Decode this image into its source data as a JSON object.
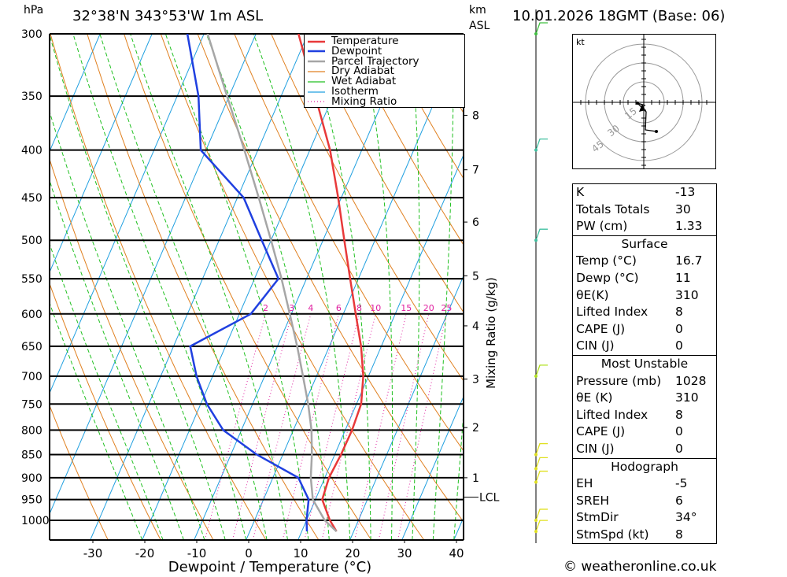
{
  "header": {
    "hpa_unit": "hPa",
    "location": "32°38'N 343°53'W 1m ASL",
    "km_unit": "km",
    "asl_unit": "ASL",
    "datetime": "10.01.2026 18GMT (Base: 06)"
  },
  "chart_data": {
    "type": "skew-t log-p",
    "xlabel": "Dewpoint / Temperature (°C)",
    "ylabel_left": "hPa",
    "ylabel_right": "Mixing Ratio (g/kg)",
    "pressure_levels": [
      300,
      350,
      400,
      450,
      500,
      550,
      600,
      650,
      700,
      750,
      800,
      850,
      900,
      950,
      1000
    ],
    "temperature_ticks": [
      -30,
      -20,
      -10,
      0,
      10,
      20,
      30,
      40
    ],
    "km_ticks": [
      {
        "label": "8",
        "p": 367
      },
      {
        "label": "7",
        "p": 420
      },
      {
        "label": "6",
        "p": 478
      },
      {
        "label": "5",
        "p": 546
      },
      {
        "label": "4",
        "p": 618
      },
      {
        "label": "3",
        "p": 705
      },
      {
        "label": "2",
        "p": 795
      },
      {
        "label": "1",
        "p": 900
      }
    ],
    "lcl": {
      "label": "LCL",
      "p": 950
    },
    "mixing_ratio_labels": [
      "2",
      "3",
      "4",
      "6",
      "8",
      "10",
      "15",
      "20",
      "25"
    ],
    "mixing_ratio_values": [
      2,
      3,
      4,
      6,
      8,
      10,
      15,
      20,
      25
    ],
    "legend": [
      "Temperature",
      "Dewpoint",
      "Parcel Trajectory",
      "Dry Adiabat",
      "Wet Adiabat",
      "Isotherm",
      "Mixing Ratio"
    ],
    "series": [
      {
        "name": "Temperature",
        "color": "#e8393a",
        "points": [
          [
            1028,
            16.7
          ],
          [
            1000,
            14.5
          ],
          [
            950,
            11.3
          ],
          [
            900,
            10.8
          ],
          [
            850,
            11.2
          ],
          [
            800,
            11.3
          ],
          [
            750,
            10.9
          ],
          [
            700,
            9.0
          ],
          [
            650,
            6.1
          ],
          [
            600,
            2.4
          ],
          [
            550,
            -1.6
          ],
          [
            500,
            -5.9
          ],
          [
            450,
            -10.6
          ],
          [
            400,
            -16.1
          ],
          [
            350,
            -23.4
          ],
          [
            300,
            -31.8
          ]
        ]
      },
      {
        "name": "Dewpoint",
        "color": "#2040e0",
        "points": [
          [
            1028,
            11
          ],
          [
            1000,
            10.0
          ],
          [
            950,
            8.7
          ],
          [
            900,
            4.9
          ],
          [
            850,
            -5.0
          ],
          [
            800,
            -13.5
          ],
          [
            750,
            -18.8
          ],
          [
            700,
            -23.1
          ],
          [
            650,
            -26.8
          ],
          [
            600,
            -17.8
          ],
          [
            550,
            -15.4
          ],
          [
            500,
            -21.8
          ],
          [
            450,
            -28.8
          ],
          [
            400,
            -41.0
          ],
          [
            350,
            -45.9
          ],
          [
            300,
            -53.2
          ]
        ]
      },
      {
        "name": "Parcel Trajectory",
        "color": "#a6a6a6",
        "points": [
          [
            1028,
            16.7
          ],
          [
            1000,
            13.5
          ],
          [
            950,
            9.5
          ],
          [
            900,
            7.3
          ],
          [
            850,
            5.6
          ],
          [
            800,
            3.5
          ],
          [
            750,
            0.7
          ],
          [
            700,
            -2.6
          ],
          [
            650,
            -6.2
          ],
          [
            600,
            -10.3
          ],
          [
            550,
            -14.8
          ],
          [
            500,
            -20.0
          ],
          [
            450,
            -25.9
          ],
          [
            400,
            -32.6
          ],
          [
            350,
            -40.4
          ],
          [
            300,
            -49.3
          ]
        ]
      }
    ],
    "wind_barbs": [
      {
        "p": 300,
        "color": "#40c040"
      },
      {
        "p": 400,
        "color": "#40c0a0"
      },
      {
        "p": 500,
        "color": "#40c0a0"
      },
      {
        "p": 700,
        "color": "#b0e020"
      },
      {
        "p": 850,
        "color": "#e0e020"
      },
      {
        "p": 880,
        "color": "#e0e020"
      },
      {
        "p": 910,
        "color": "#e0e020"
      },
      {
        "p": 1000,
        "color": "#e0e020"
      },
      {
        "p": 1028,
        "color": "#e0e020"
      }
    ],
    "colors": {
      "dry_adiabat": "#e08020",
      "wet_adiabat": "#20c020",
      "isotherm": "#20a0e0",
      "mixing_ratio": "#e020a0"
    }
  },
  "hodograph": {
    "unit": "kt",
    "ring_labels": [
      "15",
      "30",
      "45"
    ]
  },
  "indices": {
    "top": [
      {
        "label": "K",
        "value": "-13"
      },
      {
        "label": "Totals Totals",
        "value": "30"
      },
      {
        "label": "PW (cm)",
        "value": "1.33"
      }
    ],
    "surface": {
      "title": "Surface",
      "rows": [
        {
          "label": "Temp (°C)",
          "value": "16.7"
        },
        {
          "label": "Dewp (°C)",
          "value": "11"
        },
        {
          "label": "θE(K)",
          "value": "310"
        },
        {
          "label": "Lifted Index",
          "value": "8"
        },
        {
          "label": "CAPE (J)",
          "value": "0"
        },
        {
          "label": "CIN (J)",
          "value": "0"
        }
      ]
    },
    "most_unstable": {
      "title": "Most Unstable",
      "rows": [
        {
          "label": "Pressure (mb)",
          "value": "1028"
        },
        {
          "label": "θE (K)",
          "value": "310"
        },
        {
          "label": "Lifted Index",
          "value": "8"
        },
        {
          "label": "CAPE (J)",
          "value": "0"
        },
        {
          "label": "CIN (J)",
          "value": "0"
        }
      ]
    },
    "hodograph": {
      "title": "Hodograph",
      "rows": [
        {
          "label": "EH",
          "value": "-5"
        },
        {
          "label": "SREH",
          "value": "6"
        },
        {
          "label": "StmDir",
          "value": "34°"
        },
        {
          "label": "StmSpd (kt)",
          "value": "8"
        }
      ]
    }
  },
  "credit": "© weatheronline.co.uk"
}
